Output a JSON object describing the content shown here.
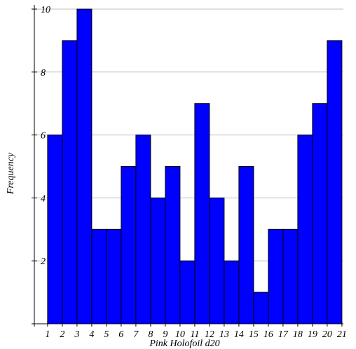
{
  "chart_data": {
    "type": "bar",
    "title": "",
    "xlabel": "Pink Holofoil d20",
    "ylabel": "Frequency",
    "bins": [
      {
        "start": 1,
        "end": 2,
        "value": 6
      },
      {
        "start": 2,
        "end": 3,
        "value": 9
      },
      {
        "start": 3,
        "end": 4,
        "value": 10
      },
      {
        "start": 4,
        "end": 5,
        "value": 3
      },
      {
        "start": 5,
        "end": 6,
        "value": 3
      },
      {
        "start": 6,
        "end": 7,
        "value": 5
      },
      {
        "start": 7,
        "end": 8,
        "value": 6
      },
      {
        "start": 8,
        "end": 9,
        "value": 4
      },
      {
        "start": 9,
        "end": 10,
        "value": 5
      },
      {
        "start": 10,
        "end": 11,
        "value": 2
      },
      {
        "start": 11,
        "end": 12,
        "value": 7
      },
      {
        "start": 12,
        "end": 13,
        "value": 4
      },
      {
        "start": 13,
        "end": 14,
        "value": 2
      },
      {
        "start": 14,
        "end": 15,
        "value": 5
      },
      {
        "start": 15,
        "end": 16,
        "value": 1
      },
      {
        "start": 16,
        "end": 17,
        "value": 3
      },
      {
        "start": 17,
        "end": 18,
        "value": 3
      },
      {
        "start": 18,
        "end": 19,
        "value": 6
      },
      {
        "start": 19,
        "end": 20,
        "value": 7
      },
      {
        "start": 20,
        "end": 21,
        "value": 9
      }
    ],
    "x_ticks": [
      "1",
      "2",
      "3",
      "4",
      "5",
      "6",
      "7",
      "8",
      "9",
      "10",
      "11",
      "12",
      "13",
      "14",
      "15",
      "16",
      "17",
      "18",
      "19",
      "20",
      "21"
    ],
    "y_ticks": [
      "2",
      "4",
      "6",
      "8",
      "10"
    ],
    "xlim": [
      0.1,
      21.1
    ],
    "ylim": [
      0,
      10
    ],
    "grid": true,
    "legend": "none",
    "colors": {
      "bar": "#0000ff",
      "bar_edge": "#000000",
      "grid": "#bfbfbf",
      "axis": "#000000"
    }
  }
}
